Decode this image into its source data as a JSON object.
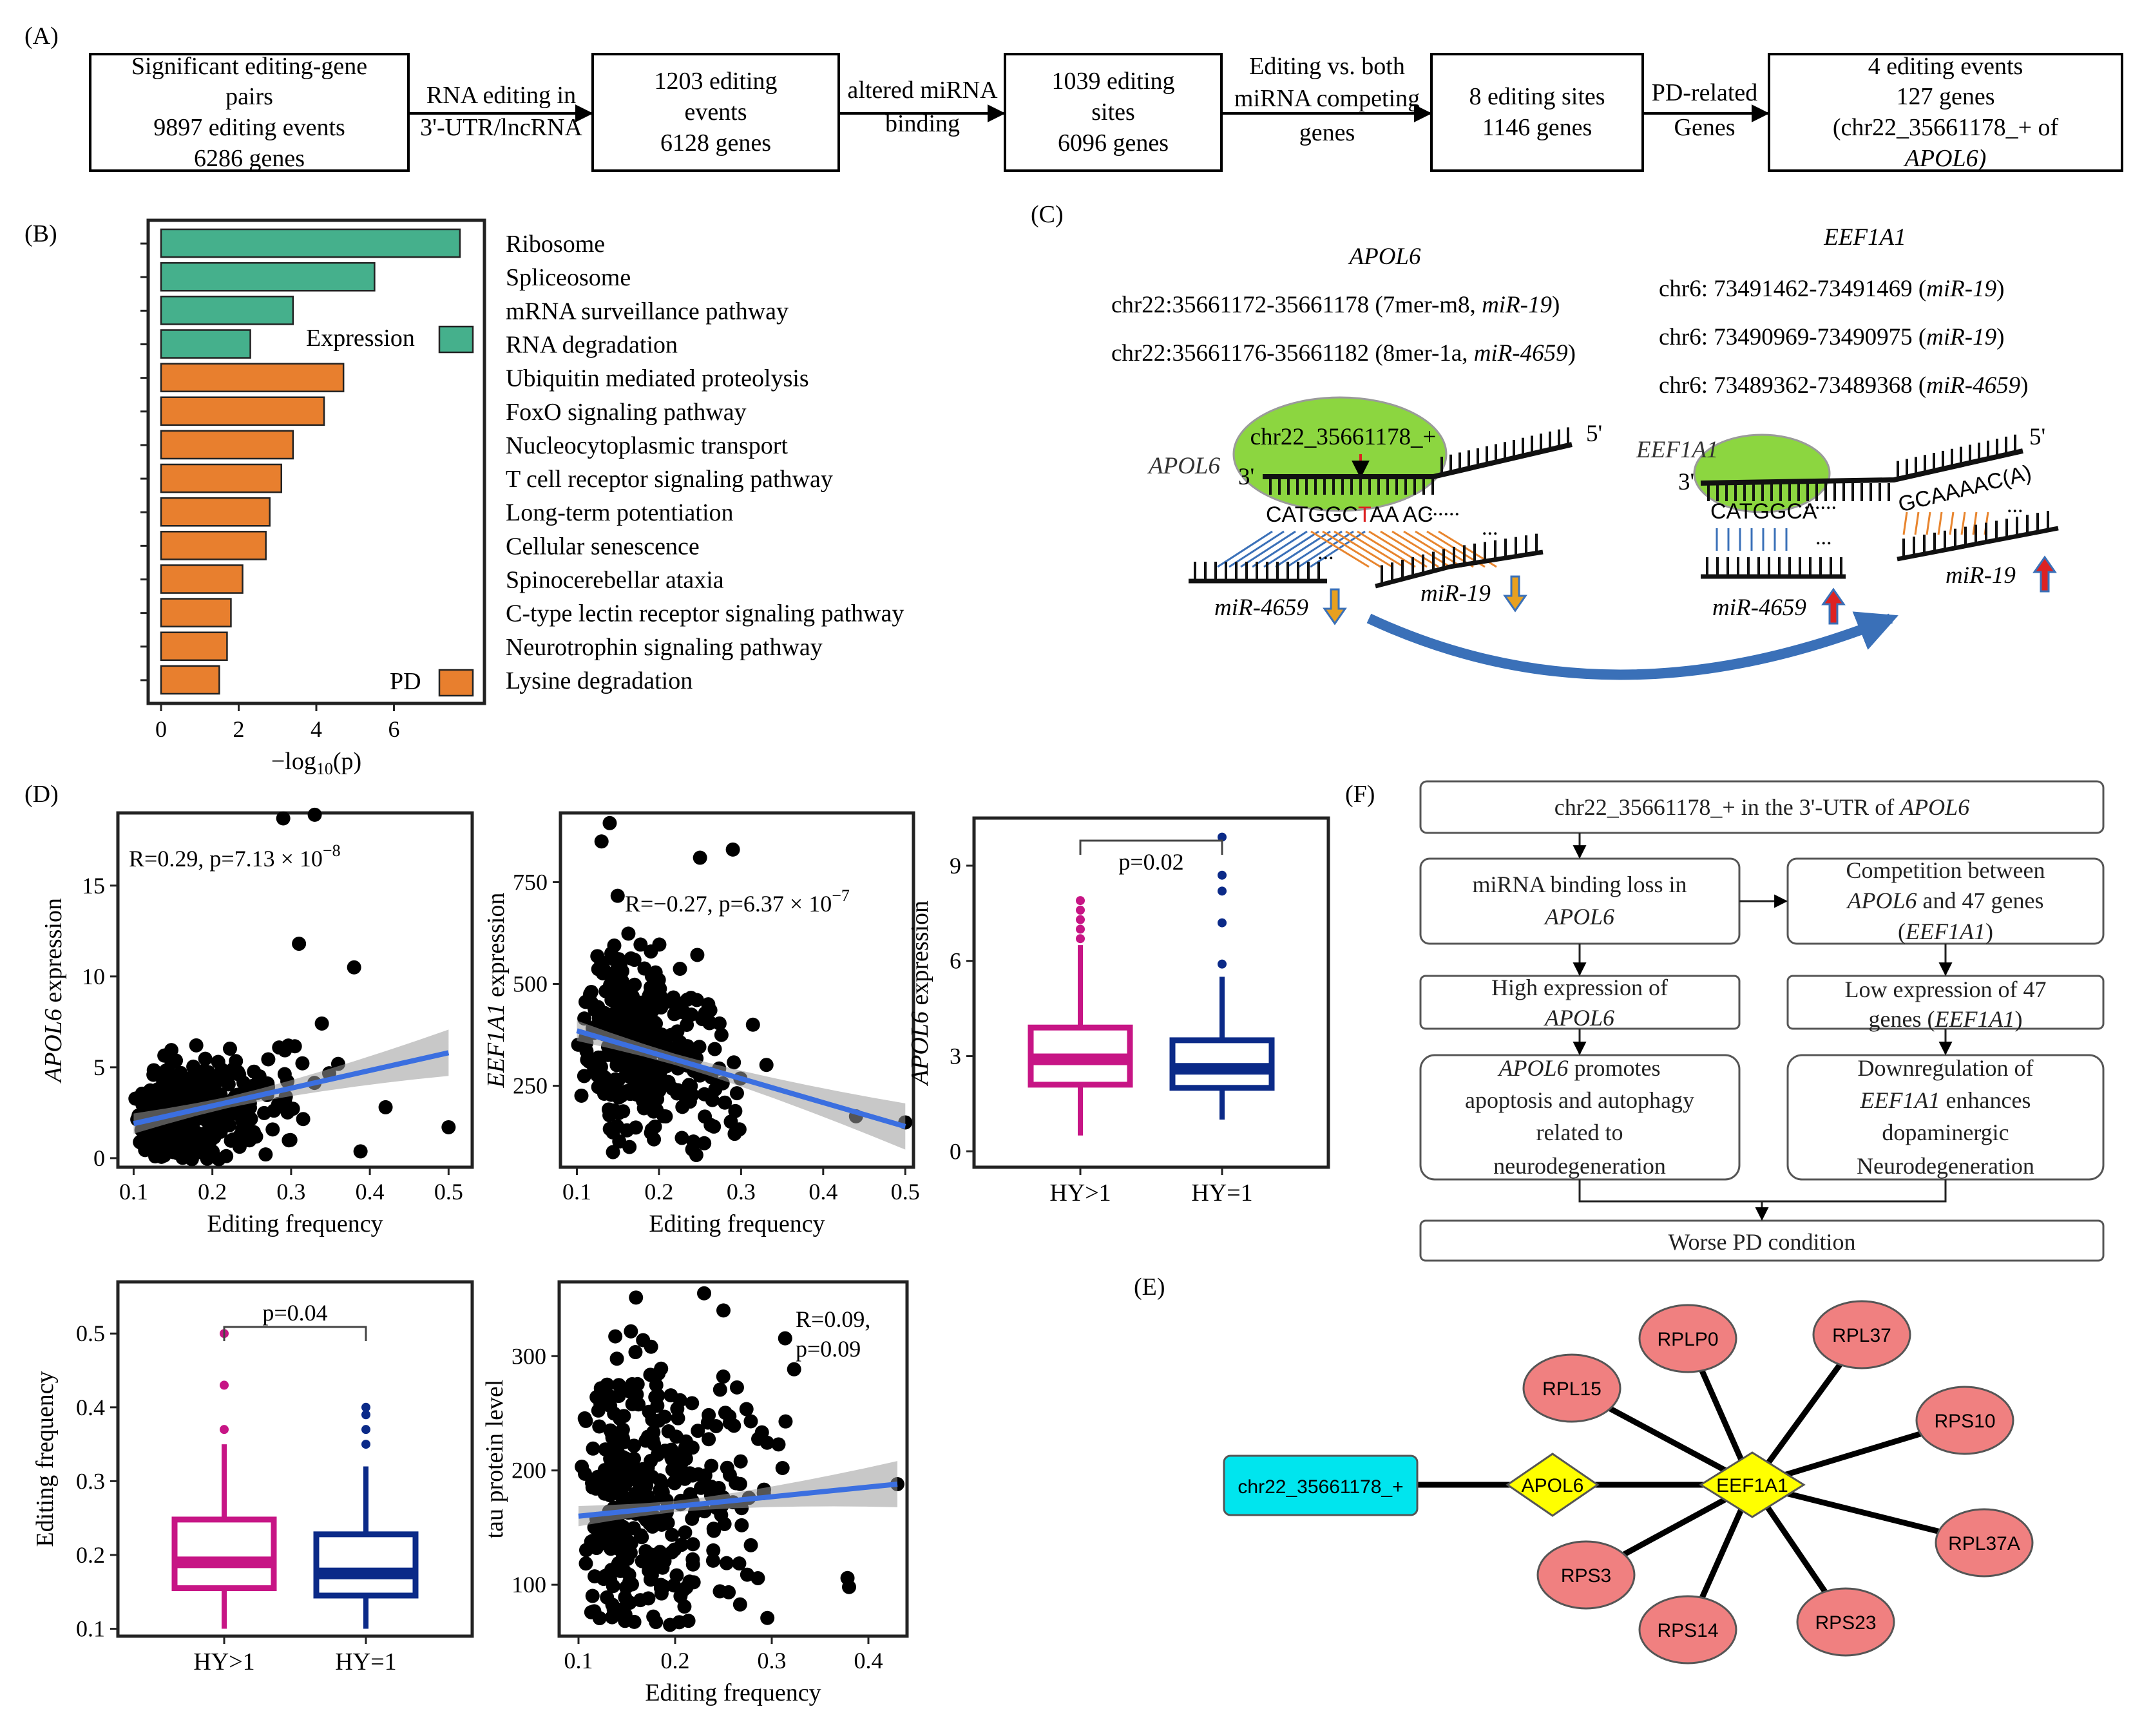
{
  "panel_labels": {
    "A": "(A)",
    "B": "(B)",
    "C": "(C)",
    "D": "(D)",
    "E": "(E)",
    "F": "(F)"
  },
  "flow_a": {
    "boxes": [
      [
        "Significant editing-gene",
        "pairs",
        "9897 editing events",
        "6286 genes"
      ],
      [
        "1203  editing",
        "events",
        "6128 genes"
      ],
      [
        "1039 editing",
        "sites",
        "6096 genes"
      ],
      [
        "8 editing sites",
        "1146 genes"
      ],
      [
        "4 editing events",
        "127 genes",
        "(chr22_35661178_+ of",
        "APOL6)"
      ]
    ],
    "arrows": [
      [
        "RNA editing in",
        "3'-UTR/lncRNA"
      ],
      [
        "altered miRNA",
        "binding"
      ],
      [
        "Editing vs. both",
        "miRNA competing",
        "genes"
      ],
      [
        "PD-related",
        "Genes"
      ]
    ]
  },
  "chart_data": [
    {
      "id": "B",
      "type": "bar",
      "orientation": "horizontal",
      "categories": [
        "Ribosome",
        "Spliceosome",
        "mRNA surveillance pathway",
        "RNA degradation",
        "Ubiquitin mediated proteolysis",
        "FoxO signaling pathway",
        "Nucleocytoplasmic transport",
        "T cell receptor signaling pathway",
        "Long-term potentiation",
        "Cellular senescence",
        "Spinocerebellar ataxia",
        "C-type lectin receptor signaling pathway",
        "Neurotrophin signaling pathway",
        "Lysine degradation"
      ],
      "values": [
        7.7,
        5.5,
        3.4,
        2.3,
        4.7,
        4.2,
        3.4,
        3.1,
        2.8,
        2.7,
        2.1,
        1.8,
        1.7,
        1.5
      ],
      "groups": [
        "Expression",
        "Expression",
        "Expression",
        "Expression",
        "PD",
        "PD",
        "PD",
        "PD",
        "PD",
        "PD",
        "PD",
        "PD",
        "PD",
        "PD"
      ],
      "legend": [
        {
          "name": "Expression",
          "color": "#45b08c"
        },
        {
          "name": "PD",
          "color": "#e87f2e"
        }
      ],
      "xlabel": "−log10(p)",
      "xticks": [
        0,
        2,
        4,
        6
      ],
      "xlim": [
        0,
        8
      ]
    },
    {
      "id": "D1",
      "type": "scatter",
      "xlabel": "Editing frequency",
      "ylabel": "APOL6 expression",
      "annotation": "R=0.29, p=7.13 × 10",
      "annotation_exp": "−8",
      "xlim": [
        0.08,
        0.53
      ],
      "ylim": [
        -0.5,
        19
      ],
      "xticks": [
        0.1,
        0.2,
        0.3,
        0.4,
        0.5
      ],
      "yticks": [
        0,
        5,
        10,
        15
      ],
      "trend": {
        "x": [
          0.1,
          0.5
        ],
        "y": [
          1.9,
          5.8
        ]
      },
      "n_points": 360,
      "outliers": [
        [
          0.29,
          18.7
        ],
        [
          0.33,
          18.9
        ],
        [
          0.5,
          1.7
        ],
        [
          0.42,
          2.8
        ],
        [
          0.38,
          10.5
        ],
        [
          0.31,
          11.8
        ]
      ]
    },
    {
      "id": "D2",
      "type": "scatter",
      "xlabel": "Editing frequency",
      "ylabel": "EEF1A1 expression",
      "annotation": "R=−0.27, p=6.37 × 10",
      "annotation_exp": "−7",
      "xlim": [
        0.08,
        0.51
      ],
      "ylim": [
        50,
        920
      ],
      "xticks": [
        0.1,
        0.2,
        0.3,
        0.4,
        0.5
      ],
      "yticks": [
        250,
        500,
        750
      ],
      "trend": {
        "x": [
          0.1,
          0.5
        ],
        "y": [
          385,
          150
        ]
      },
      "n_points": 360,
      "outliers": [
        [
          0.14,
          895
        ],
        [
          0.13,
          850
        ],
        [
          0.25,
          810
        ],
        [
          0.29,
          830
        ],
        [
          0.5,
          160
        ],
        [
          0.44,
          175
        ]
      ]
    },
    {
      "id": "D3",
      "type": "box",
      "categories": [
        "HY>1",
        "HY=1"
      ],
      "ylabel": "APOL6 expression",
      "pvalue": "p=0.02",
      "ylim": [
        -0.5,
        10.5
      ],
      "yticks": [
        0,
        3,
        6,
        9
      ],
      "boxes": [
        {
          "min": 0.5,
          "q1": 2.1,
          "median": 2.9,
          "q3": 3.9,
          "max": 6.5,
          "color": "#c71585",
          "outliers": [
            6.7,
            7.0,
            7.3,
            7.6,
            7.9
          ]
        },
        {
          "min": 1.0,
          "q1": 2.0,
          "median": 2.6,
          "q3": 3.5,
          "max": 5.5,
          "color": "#0b2a88",
          "outliers": [
            5.9,
            7.2,
            8.2,
            8.7,
            9.9
          ]
        }
      ]
    },
    {
      "id": "D4",
      "type": "box",
      "categories": [
        "HY>1",
        "HY=1"
      ],
      "ylabel": "Editing frequency",
      "pvalue": "p=0.04",
      "ylim": [
        0.09,
        0.57
      ],
      "yticks": [
        0.1,
        0.2,
        0.3,
        0.4,
        0.5
      ],
      "boxes": [
        {
          "min": 0.1,
          "q1": 0.155,
          "median": 0.19,
          "q3": 0.248,
          "max": 0.35,
          "color": "#c71585",
          "outliers": [
            0.37,
            0.43,
            0.5
          ]
        },
        {
          "min": 0.1,
          "q1": 0.145,
          "median": 0.175,
          "q3": 0.228,
          "max": 0.32,
          "color": "#0b2a88",
          "outliers": [
            0.35,
            0.37,
            0.39,
            0.4
          ]
        }
      ]
    },
    {
      "id": "D5",
      "type": "scatter",
      "xlabel": "Editing frequency",
      "ylabel": "tau protein level",
      "annotation": "R=0.09,",
      "annotation2": "p=0.09",
      "xlim": [
        0.08,
        0.44
      ],
      "ylim": [
        55,
        365
      ],
      "xticks": [
        0.1,
        0.2,
        0.3,
        0.4
      ],
      "yticks": [
        100,
        200,
        300
      ],
      "trend": {
        "x": [
          0.1,
          0.43
        ],
        "y": [
          160,
          188
        ]
      },
      "n_points": 360,
      "outliers": [
        [
          0.23,
          355
        ],
        [
          0.25,
          340
        ],
        [
          0.43,
          188
        ],
        [
          0.38,
          98
        ]
      ]
    }
  ],
  "panel_c": {
    "gene_left": "APOL6",
    "left_sites": [
      {
        "text": "chr22:35661172-35661178 (7mer-m8, ",
        "mirna": "miR-19",
        "close": ")"
      },
      {
        "text": "chr22:35661176-35661182 (8mer-1a, ",
        "mirna": "miR-4659",
        "close": ")"
      }
    ],
    "gene_right": "EEF1A1",
    "right_sites": [
      {
        "text": "chr6: 73491462-73491469 (",
        "mirna": "miR-19",
        "close": ")"
      },
      {
        "text": "chr6: 73490969-73490975 (",
        "mirna": "miR-19",
        "close": ")"
      },
      {
        "text": "chr6: 73489362-73489368 (",
        "mirna": "miR-4659",
        "close": ")"
      }
    ],
    "edit_label": "chr22_35661178_+",
    "five_prime": "5'",
    "three_prime": "3'",
    "seq_left": "CATGGC",
    "seq_left_edit": "T",
    "seq_left2": "AA",
    "seq_left3": "AC",
    "dots": "......",
    "seq_right": "CATGGCA",
    "seq_right2": "GCAAAAC(A)",
    "ellipsis": "...",
    "mir4659": "miR-4659",
    "mir19": "miR-19"
  },
  "network": {
    "edit_node": "chr22_35661178_+",
    "apol6": "APOL6",
    "hub": "EEF1A1",
    "genes": [
      "RPLP0",
      "RPL37",
      "RPS10",
      "RPL37A",
      "RPS23",
      "RPS14",
      "RPS3",
      "RPL15"
    ],
    "colors": {
      "edit": "#00e5ee",
      "diamond": "#ffff00",
      "gene": "#f08080"
    }
  },
  "flow_f": {
    "top": [
      "chr22_35661178_+ in the 3'-UTR of ",
      "APOL6"
    ],
    "l1": [
      "miRNA binding loss in",
      "APOL6"
    ],
    "r1": [
      "Competition between",
      "APOL6",
      " and 47 genes",
      "(",
      "EEF1A1",
      ")"
    ],
    "l2": [
      "High expression of",
      "APOL6"
    ],
    "r2": [
      "Low expression of 47",
      "genes (",
      "EEF1A1",
      ")"
    ],
    "l3": [
      "APOL6",
      " promotes",
      "apoptosis and autophagy",
      "related to",
      "neurodegeneration"
    ],
    "r3": [
      "Downregulation of",
      "EEF1A1",
      " enhances",
      "dopaminergic",
      "Neurodegeneration"
    ],
    "bottom": "Worse PD condition"
  }
}
